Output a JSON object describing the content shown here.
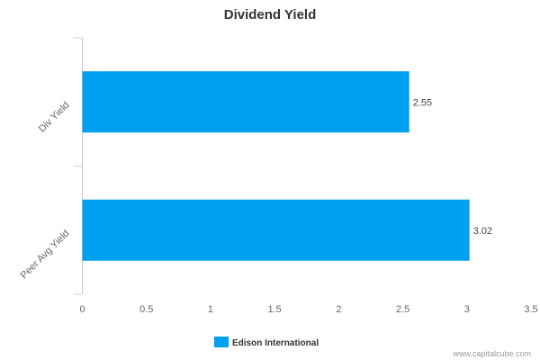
{
  "chart_data": {
    "type": "bar",
    "orientation": "horizontal",
    "title": "Dividend Yield",
    "categories": [
      "Div Yield",
      "Peer Avg Yield"
    ],
    "series": [
      {
        "name": "Edison International",
        "values": [
          2.55,
          3.02
        ],
        "color": "#00a0f0"
      }
    ],
    "data_labels": [
      "2.55",
      "3.02"
    ],
    "xlim": [
      0,
      3.5
    ],
    "xticks": [
      0,
      0.5,
      1,
      1.5,
      2,
      2.5,
      3,
      3.5
    ],
    "xtick_labels": [
      "0",
      "0.5",
      "1",
      "1.5",
      "2",
      "2.5",
      "3",
      "3.5"
    ],
    "grid": false,
    "legend_position": "bottom-center"
  },
  "watermark": "www.capitalcube.com"
}
